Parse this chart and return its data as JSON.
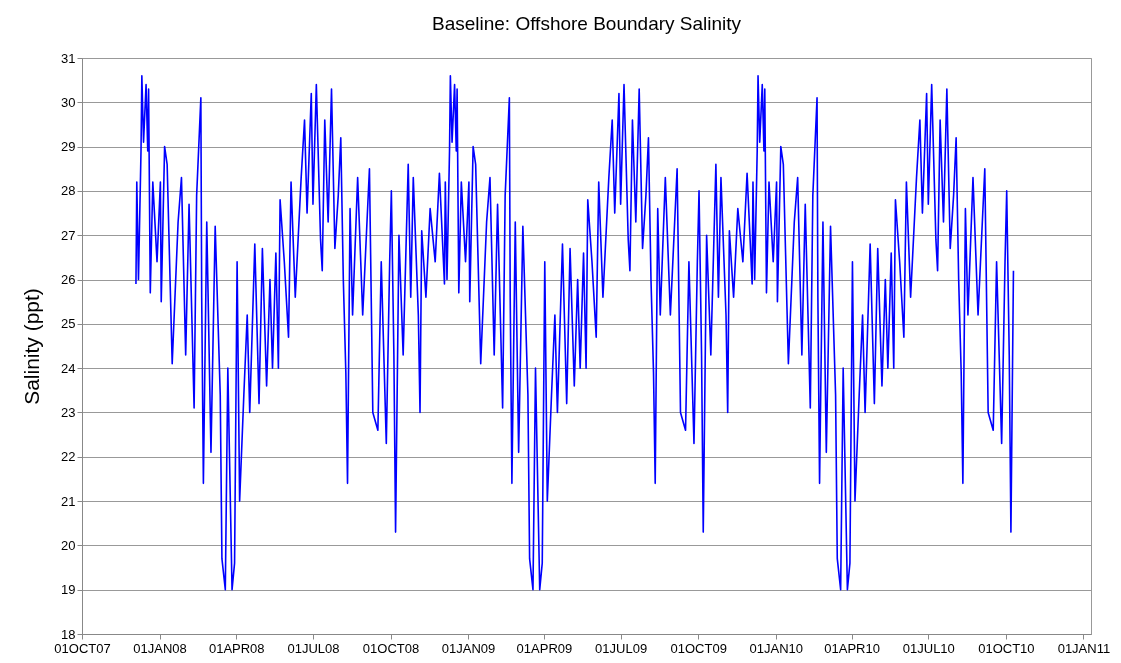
{
  "chart_data": {
    "type": "line",
    "title": "Baseline: Offshore Boundary Salinity",
    "ylabel": "Salinity (ppt)",
    "xlim": [
      "2007-10-01",
      "2011-01-10"
    ],
    "xticks": [
      {
        "value": "2007-10-01",
        "label": "01OCT07"
      },
      {
        "value": "2008-01-01",
        "label": "01JAN08"
      },
      {
        "value": "2008-04-01",
        "label": "01APR08"
      },
      {
        "value": "2008-07-01",
        "label": "01JUL08"
      },
      {
        "value": "2008-10-01",
        "label": "01OCT08"
      },
      {
        "value": "2009-01-01",
        "label": "01JAN09"
      },
      {
        "value": "2009-04-01",
        "label": "01APR09"
      },
      {
        "value": "2009-07-01",
        "label": "01JUL09"
      },
      {
        "value": "2009-10-01",
        "label": "01OCT09"
      },
      {
        "value": "2010-01-01",
        "label": "01JAN10"
      },
      {
        "value": "2010-04-01",
        "label": "01APR10"
      },
      {
        "value": "2010-07-01",
        "label": "01JUL10"
      },
      {
        "value": "2010-10-01",
        "label": "01OCT10"
      },
      {
        "value": "2011-01-01",
        "label": "01JAN11"
      }
    ],
    "ylim": [
      18,
      31
    ],
    "yticks": [
      18,
      19,
      20,
      21,
      22,
      23,
      24,
      25,
      26,
      27,
      28,
      29,
      30,
      31
    ],
    "grid": "y",
    "marker": "none",
    "line_style": "solid",
    "series": [
      {
        "color": "#0000ff",
        "x": [
          "2007-12-04",
          "2007-12-05",
          "2007-12-07",
          "2007-12-10",
          "2007-12-11",
          "2007-12-13",
          "2007-12-16",
          "2007-12-18",
          "2007-12-19",
          "2007-12-21",
          "2007-12-24",
          "2007-12-29",
          "2008-01-02",
          "2008-01-03",
          "2008-01-07",
          "2008-01-10",
          "2008-01-16",
          "2008-01-23",
          "2008-01-27",
          "2008-02-01",
          "2008-02-05",
          "2008-02-11",
          "2008-02-14",
          "2008-02-19",
          "2008-02-20",
          "2008-02-22",
          "2008-02-26",
          "2008-03-02",
          "2008-03-07",
          "2008-03-13",
          "2008-03-15",
          "2008-03-19",
          "2008-03-22",
          "2008-03-27",
          "2008-03-30",
          "2008-04-02",
          "2008-04-05",
          "2008-04-10",
          "2008-04-14",
          "2008-04-17",
          "2008-04-23",
          "2008-04-28",
          "2008-05-02",
          "2008-05-07",
          "2008-05-11",
          "2008-05-14",
          "2008-05-18",
          "2008-05-21",
          "2008-05-23",
          "2008-05-28",
          "2008-06-02",
          "2008-06-05",
          "2008-06-10",
          "2008-06-17",
          "2008-06-21",
          "2008-06-24",
          "2008-06-29",
          "2008-07-01",
          "2008-07-05",
          "2008-07-10",
          "2008-07-12",
          "2008-07-15",
          "2008-07-19",
          "2008-07-23",
          "2008-07-27",
          "2008-07-31",
          "2008-08-03",
          "2008-08-06",
          "2008-08-09",
          "2008-08-11",
          "2008-08-14",
          "2008-08-17",
          "2008-08-23",
          "2008-08-29",
          "2008-09-06",
          "2008-09-10",
          "2008-09-16",
          "2008-09-20",
          "2008-09-26",
          "2008-09-30",
          "2008-10-02",
          "2008-10-05",
          "2008-10-07",
          "2008-10-11",
          "2008-10-16",
          "2008-10-22",
          "2008-10-25",
          "2008-10-28",
          "2008-11-03",
          "2008-11-05",
          "2008-11-07",
          "2008-11-12",
          "2008-11-17",
          "2008-11-23",
          "2008-11-28",
          "2008-12-04",
          "2008-12-05",
          "2008-12-07",
          "2008-12-10",
          "2008-12-11",
          "2008-12-13",
          "2008-12-16",
          "2008-12-18",
          "2008-12-19",
          "2008-12-21",
          "2008-12-24",
          "2008-12-29",
          "2009-01-02",
          "2009-01-03",
          "2009-01-07",
          "2009-01-10",
          "2009-01-16",
          "2009-01-23",
          "2009-01-27",
          "2009-02-01",
          "2009-02-05",
          "2009-02-11",
          "2009-02-14",
          "2009-02-19",
          "2009-02-20",
          "2009-02-22",
          "2009-02-26",
          "2009-03-02",
          "2009-03-07",
          "2009-03-13",
          "2009-03-15",
          "2009-03-19",
          "2009-03-22",
          "2009-03-27",
          "2009-03-30",
          "2009-04-02",
          "2009-04-05",
          "2009-04-10",
          "2009-04-14",
          "2009-04-17",
          "2009-04-23",
          "2009-04-28",
          "2009-05-02",
          "2009-05-07",
          "2009-05-11",
          "2009-05-14",
          "2009-05-18",
          "2009-05-21",
          "2009-05-23",
          "2009-05-28",
          "2009-06-02",
          "2009-06-05",
          "2009-06-10",
          "2009-06-17",
          "2009-06-21",
          "2009-06-24",
          "2009-06-29",
          "2009-07-01",
          "2009-07-05",
          "2009-07-10",
          "2009-07-12",
          "2009-07-15",
          "2009-07-19",
          "2009-07-23",
          "2009-07-27",
          "2009-07-31",
          "2009-08-03",
          "2009-08-06",
          "2009-08-09",
          "2009-08-11",
          "2009-08-14",
          "2009-08-17",
          "2009-08-23",
          "2009-08-29",
          "2009-09-06",
          "2009-09-10",
          "2009-09-16",
          "2009-09-20",
          "2009-09-26",
          "2009-09-30",
          "2009-10-02",
          "2009-10-05",
          "2009-10-07",
          "2009-10-11",
          "2009-10-16",
          "2009-10-22",
          "2009-10-25",
          "2009-10-28",
          "2009-11-03",
          "2009-11-05",
          "2009-11-07",
          "2009-11-12",
          "2009-11-17",
          "2009-11-23",
          "2009-11-28",
          "2009-12-04",
          "2009-12-05",
          "2009-12-07",
          "2009-12-10",
          "2009-12-11",
          "2009-12-13",
          "2009-12-16",
          "2009-12-18",
          "2009-12-19",
          "2009-12-21",
          "2009-12-24",
          "2009-12-29",
          "2010-01-02",
          "2010-01-03",
          "2010-01-07",
          "2010-01-10",
          "2010-01-16",
          "2010-01-23",
          "2010-01-27",
          "2010-02-01",
          "2010-02-05",
          "2010-02-11",
          "2010-02-14",
          "2010-02-19",
          "2010-02-20",
          "2010-02-22",
          "2010-02-26",
          "2010-03-02",
          "2010-03-07",
          "2010-03-13",
          "2010-03-15",
          "2010-03-19",
          "2010-03-22",
          "2010-03-27",
          "2010-03-30",
          "2010-04-02",
          "2010-04-05",
          "2010-04-10",
          "2010-04-14",
          "2010-04-17",
          "2010-04-23",
          "2010-04-28",
          "2010-05-02",
          "2010-05-07",
          "2010-05-11",
          "2010-05-14",
          "2010-05-18",
          "2010-05-21",
          "2010-05-23",
          "2010-05-28",
          "2010-06-02",
          "2010-06-05",
          "2010-06-10",
          "2010-06-17",
          "2010-06-21",
          "2010-06-24",
          "2010-06-29",
          "2010-07-01",
          "2010-07-05",
          "2010-07-10",
          "2010-07-12",
          "2010-07-15",
          "2010-07-19",
          "2010-07-23",
          "2010-07-27",
          "2010-07-31",
          "2010-08-03",
          "2010-08-06",
          "2010-08-09",
          "2010-08-11",
          "2010-08-14",
          "2010-08-17",
          "2010-08-23",
          "2010-08-29",
          "2010-09-06",
          "2010-09-10",
          "2010-09-16",
          "2010-09-20",
          "2010-09-26",
          "2010-09-30",
          "2010-10-02",
          "2010-10-05",
          "2010-10-07",
          "2010-10-10"
        ],
        "values": [
          25.9,
          28.2,
          26.0,
          28.9,
          30.6,
          29.1,
          30.4,
          28.9,
          30.3,
          25.7,
          28.2,
          26.4,
          28.2,
          25.5,
          29.0,
          28.6,
          24.1,
          27.3,
          28.3,
          24.3,
          27.7,
          23.1,
          27.9,
          30.1,
          25.6,
          21.4,
          27.3,
          22.1,
          27.2,
          23.4,
          19.7,
          19.0,
          24.0,
          19.0,
          19.6,
          26.4,
          21.0,
          23.4,
          25.2,
          23.0,
          26.8,
          23.2,
          26.7,
          23.6,
          26.0,
          24.0,
          26.6,
          24.0,
          27.8,
          26.4,
          24.7,
          28.2,
          25.6,
          28.3,
          29.6,
          27.5,
          30.2,
          27.7,
          30.4,
          26.9,
          26.2,
          29.6,
          27.3,
          30.3,
          26.7,
          27.9,
          29.2,
          26.0,
          23.9,
          21.4,
          27.6,
          25.2,
          28.3,
          25.2,
          28.5,
          23.0,
          22.6,
          26.4,
          22.3,
          26.4,
          28.0,
          24.3,
          20.3,
          27.0,
          24.3,
          28.6,
          25.6,
          28.3,
          25.2,
          23.0,
          27.1,
          25.6,
          27.6,
          26.4,
          28.4,
          25.9,
          28.2,
          26.0,
          28.9,
          30.6,
          29.1,
          30.4,
          28.9,
          30.3,
          25.7,
          28.2,
          26.4,
          28.2,
          25.5,
          29.0,
          28.6,
          24.1,
          27.3,
          28.3,
          24.3,
          27.7,
          23.1,
          27.9,
          30.1,
          25.6,
          21.4,
          27.3,
          22.1,
          27.2,
          23.4,
          19.7,
          19.0,
          24.0,
          19.0,
          19.6,
          26.4,
          21.0,
          23.4,
          25.2,
          23.0,
          26.8,
          23.2,
          26.7,
          23.6,
          26.0,
          24.0,
          26.6,
          24.0,
          27.8,
          26.4,
          24.7,
          28.2,
          25.6,
          28.3,
          29.6,
          27.5,
          30.2,
          27.7,
          30.4,
          26.9,
          26.2,
          29.6,
          27.3,
          30.3,
          26.7,
          27.9,
          29.2,
          26.0,
          23.9,
          21.4,
          27.6,
          25.2,
          28.3,
          25.2,
          28.5,
          23.0,
          22.6,
          26.4,
          22.3,
          26.4,
          28.0,
          24.3,
          20.3,
          27.0,
          24.3,
          28.6,
          25.6,
          28.3,
          25.2,
          23.0,
          27.1,
          25.6,
          27.6,
          26.4,
          28.4,
          25.9,
          28.2,
          26.0,
          28.9,
          30.6,
          29.1,
          30.4,
          28.9,
          30.3,
          25.7,
          28.2,
          26.4,
          28.2,
          25.5,
          29.0,
          28.6,
          24.1,
          27.3,
          28.3,
          24.3,
          27.7,
          23.1,
          27.9,
          30.1,
          25.6,
          21.4,
          27.3,
          22.1,
          27.2,
          23.4,
          19.7,
          19.0,
          24.0,
          19.0,
          19.6,
          26.4,
          21.0,
          23.4,
          25.2,
          23.0,
          26.8,
          23.2,
          26.7,
          23.6,
          26.0,
          24.0,
          26.6,
          24.0,
          27.8,
          26.4,
          24.7,
          28.2,
          25.6,
          28.3,
          29.6,
          27.5,
          30.2,
          27.7,
          30.4,
          26.9,
          26.2,
          29.6,
          27.3,
          30.3,
          26.7,
          27.9,
          29.2,
          26.0,
          23.9,
          21.4,
          27.6,
          25.2,
          28.3,
          25.2,
          28.5,
          23.0,
          22.6,
          26.4,
          22.3,
          26.4,
          28.0,
          24.3,
          20.3,
          26.2
        ]
      }
    ]
  }
}
